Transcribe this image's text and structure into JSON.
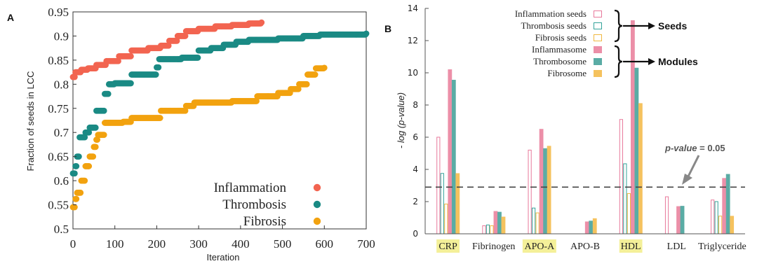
{
  "chart_data": [
    {
      "panel": "A",
      "type": "scatter",
      "xlabel": "Iteration",
      "ylabel": "Fraction of seeds in LCC",
      "xlim": [
        0,
        700
      ],
      "ylim": [
        0.5,
        0.95
      ],
      "xticks": [
        "0",
        "100",
        "200",
        "300",
        "400",
        "500",
        "600",
        "700"
      ],
      "yticks": [
        "0.5",
        "0.55",
        "0.6",
        "0.65",
        "0.7",
        "0.75",
        "0.8",
        "0.85",
        "0.9",
        "0.95"
      ],
      "legend_position": "bottom-right",
      "series": [
        {
          "name": "Inflammation",
          "color": "#f26450",
          "steps": [
            [
              0,
              0.815
            ],
            [
              5,
              0.825
            ],
            [
              20,
              0.83
            ],
            [
              35,
              0.833
            ],
            [
              55,
              0.84
            ],
            [
              80,
              0.848
            ],
            [
              110,
              0.858
            ],
            [
              140,
              0.87
            ],
            [
              180,
              0.875
            ],
            [
              210,
              0.88
            ],
            [
              230,
              0.89
            ],
            [
              250,
              0.9
            ],
            [
              270,
              0.91
            ],
            [
              300,
              0.915
            ],
            [
              340,
              0.92
            ],
            [
              380,
              0.923
            ],
            [
              420,
              0.926
            ],
            [
              450,
              0.928
            ]
          ]
        },
        {
          "name": "Thrombosis",
          "color": "#1a8a84",
          "steps": [
            [
              0,
              0.615
            ],
            [
              5,
              0.63
            ],
            [
              10,
              0.65
            ],
            [
              15,
              0.69
            ],
            [
              30,
              0.7
            ],
            [
              40,
              0.71
            ],
            [
              55,
              0.745
            ],
            [
              75,
              0.78
            ],
            [
              85,
              0.8
            ],
            [
              100,
              0.802
            ],
            [
              140,
              0.82
            ],
            [
              200,
              0.835
            ],
            [
              205,
              0.852
            ],
            [
              260,
              0.855
            ],
            [
              300,
              0.87
            ],
            [
              330,
              0.875
            ],
            [
              360,
              0.882
            ],
            [
              390,
              0.888
            ],
            [
              420,
              0.892
            ],
            [
              490,
              0.895
            ],
            [
              550,
              0.9
            ],
            [
              590,
              0.903
            ],
            [
              700,
              0.905
            ]
          ]
        },
        {
          "name": "Fibrosis",
          "color": "#f2a20f",
          "steps": [
            [
              0,
              0.545
            ],
            [
              5,
              0.562
            ],
            [
              10,
              0.575
            ],
            [
              20,
              0.6
            ],
            [
              30,
              0.63
            ],
            [
              40,
              0.65
            ],
            [
              50,
              0.67
            ],
            [
              55,
              0.685
            ],
            [
              60,
              0.695
            ],
            [
              75,
              0.72
            ],
            [
              120,
              0.722
            ],
            [
              140,
              0.73
            ],
            [
              210,
              0.745
            ],
            [
              270,
              0.755
            ],
            [
              290,
              0.762
            ],
            [
              380,
              0.765
            ],
            [
              440,
              0.775
            ],
            [
              490,
              0.782
            ],
            [
              520,
              0.79
            ],
            [
              540,
              0.8
            ],
            [
              560,
              0.82
            ],
            [
              580,
              0.833
            ],
            [
              600,
              0.834
            ]
          ]
        }
      ]
    },
    {
      "panel": "B",
      "type": "bar",
      "ylabel": "- log (p-value)",
      "ylim": [
        0,
        14
      ],
      "yticks": [
        "0",
        "2",
        "4",
        "6",
        "8",
        "10",
        "12",
        "14"
      ],
      "categories": [
        "CRP",
        "Fibrinogen",
        "APO-A",
        "APO-B",
        "HDL",
        "LDL",
        "Triglyceride"
      ],
      "highlighted_categories": [
        "CRP",
        "APO-A",
        "HDL"
      ],
      "highlight_color": "#f4f099",
      "threshold": {
        "value": 2.9,
        "label_prefix": "p-value",
        "label_suffix": " = 0.05"
      },
      "legend_groups": [
        {
          "label": "Seeds",
          "series": [
            "Inflammation seeds",
            "Thrombosis seeds",
            "Fibrosis seeds"
          ]
        },
        {
          "label": "Modules",
          "series": [
            "Inflammasome",
            "Thrombosome",
            "Fibrosome"
          ]
        }
      ],
      "series": [
        {
          "name": "Inflammation seeds",
          "style": "outline",
          "color": "#e8799b",
          "values": [
            6.0,
            0.5,
            5.2,
            null,
            7.1,
            2.3,
            2.1
          ]
        },
        {
          "name": "Thrombosis seeds",
          "style": "outline",
          "color": "#33a39a",
          "values": [
            3.75,
            0.55,
            1.6,
            null,
            4.35,
            null,
            2.0
          ]
        },
        {
          "name": "Fibrosis seeds",
          "style": "outline",
          "color": "#f0b840",
          "values": [
            1.85,
            0.5,
            1.3,
            null,
            2.5,
            null,
            1.1
          ]
        },
        {
          "name": "Inflammasome",
          "style": "filled",
          "color": "#ec8fa8",
          "values": [
            10.2,
            1.4,
            6.5,
            0.75,
            13.25,
            1.7,
            3.45
          ]
        },
        {
          "name": "Thrombosome",
          "style": "filled",
          "color": "#5aaca5",
          "values": [
            9.55,
            1.35,
            5.3,
            0.8,
            10.3,
            1.72,
            3.7
          ]
        },
        {
          "name": "Fibrosome",
          "style": "filled",
          "color": "#f5c25e",
          "values": [
            3.75,
            1.05,
            5.45,
            0.95,
            8.1,
            null,
            1.1
          ]
        }
      ]
    }
  ]
}
